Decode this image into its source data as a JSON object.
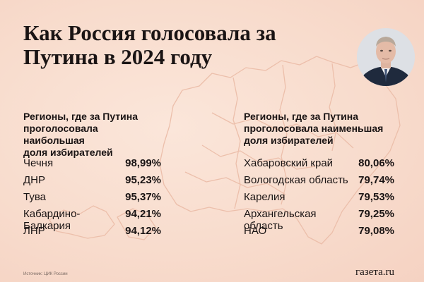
{
  "title": {
    "line1": "Как Россия голосовала за",
    "line2": "Путина в 2024 году"
  },
  "left": {
    "heading": [
      "Регионы, где за Путина",
      "проголосовала наибольшая",
      "доля избирателей"
    ],
    "rows": [
      {
        "region": "Чечня",
        "value": "98,99%"
      },
      {
        "region": "ДНР",
        "value": "95,23%"
      },
      {
        "region": "Тува",
        "value": "95,37%"
      },
      {
        "region": "Кабардино-Балкария",
        "value": "94,21%"
      },
      {
        "region": "ЛНР",
        "value": "94,12%"
      }
    ]
  },
  "right": {
    "heading": [
      "Регионы, где за Путина",
      "проголосовала наименьшая",
      "доля избирателей"
    ],
    "rows": [
      {
        "region": "Хабаровский край",
        "value": "80,06%"
      },
      {
        "region": "Вологодская область",
        "value": "79,74%"
      },
      {
        "region": "Карелия",
        "value": "79,53%"
      },
      {
        "region": "Архангельская область",
        "value": "79,25%"
      },
      {
        "region": "НАО",
        "value": "79,08%"
      }
    ]
  },
  "footer": {
    "source": "Источник: ЦИК России",
    "brand": "газета.ru"
  },
  "colors": {
    "background": "#f8dccd",
    "text": "#1a1414",
    "map_outline": "#ecbfab"
  },
  "icons": {
    "portrait": "portrait-photo"
  }
}
